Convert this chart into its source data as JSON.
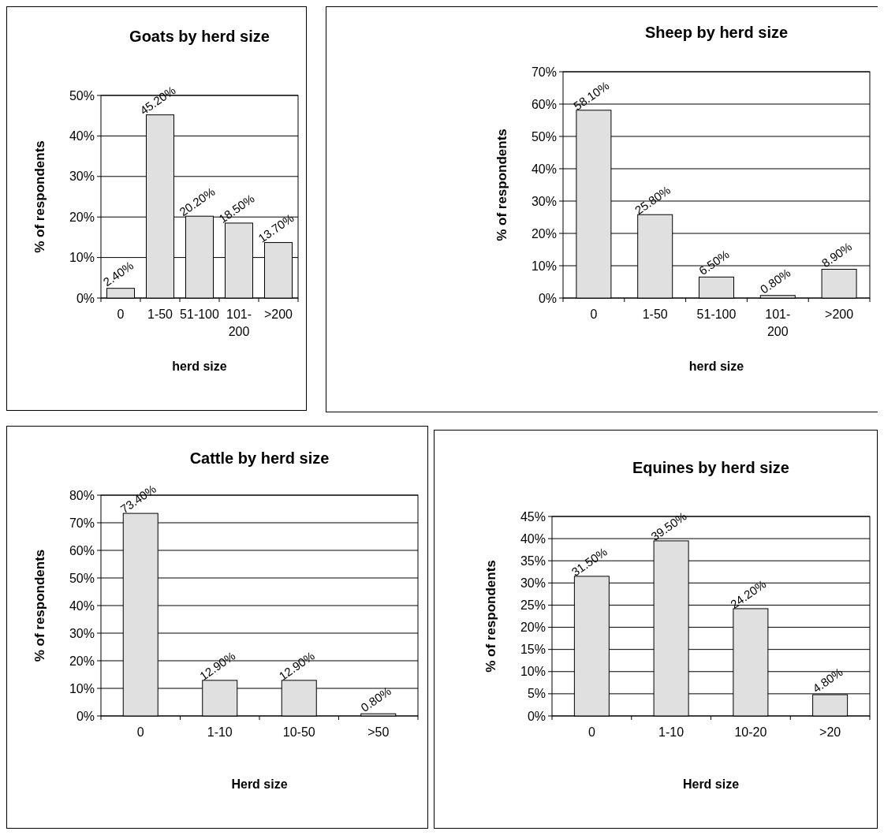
{
  "chart_data": [
    {
      "type": "bar",
      "title": "Goats by herd size",
      "xlabel": "herd size",
      "ylabel": "% of respondents",
      "categories": [
        "0",
        "1-50",
        "51-100",
        "101-200",
        ">200"
      ],
      "values": [
        2.4,
        45.2,
        20.2,
        18.5,
        13.7
      ],
      "value_labels": [
        "2.40%",
        "45.20%",
        "20.20%",
        "18.50%",
        "13.70%"
      ],
      "color": "#e0e0e0",
      "ylim": [
        0,
        50
      ],
      "yticks": [
        {
          "value": 0,
          "label": "0%"
        },
        {
          "value": 10,
          "label": "10%"
        },
        {
          "value": 20,
          "label": "20%"
        },
        {
          "value": 30,
          "label": "30%"
        },
        {
          "value": 40,
          "label": "40%"
        },
        {
          "value": 50,
          "label": "50%"
        }
      ],
      "grid": "y"
    },
    {
      "type": "bar",
      "title": "Sheep by herd size",
      "xlabel": "herd size",
      "ylabel": "% of respondents",
      "categories": [
        "0",
        "1-50",
        "51-100",
        "101-200",
        ">200"
      ],
      "values": [
        58.1,
        25.8,
        6.5,
        0.8,
        8.9
      ],
      "value_labels": [
        "58.10%",
        "25.80%",
        "6.50%",
        "0.80%",
        "8.90%"
      ],
      "color": "#e0e0e0",
      "ylim": [
        0,
        70
      ],
      "yticks": [
        {
          "value": 0,
          "label": "0%"
        },
        {
          "value": 10,
          "label": "10%"
        },
        {
          "value": 20,
          "label": "20%"
        },
        {
          "value": 30,
          "label": "30%"
        },
        {
          "value": 40,
          "label": "40%"
        },
        {
          "value": 50,
          "label": "50%"
        },
        {
          "value": 60,
          "label": "60%"
        },
        {
          "value": 70,
          "label": "70%"
        }
      ],
      "grid": "y"
    },
    {
      "type": "bar",
      "title": "Cattle by herd size",
      "xlabel": "Herd size",
      "ylabel": "% of respondents",
      "categories": [
        "0",
        "1-10",
        "10-50",
        ">50"
      ],
      "values": [
        73.4,
        12.9,
        12.9,
        0.8
      ],
      "value_labels": [
        "73.40%",
        "12.90%",
        "12.90%",
        "0.80%"
      ],
      "color": "#e0e0e0",
      "ylim": [
        0,
        80
      ],
      "yticks": [
        {
          "value": 0,
          "label": "0%"
        },
        {
          "value": 10,
          "label": "10%"
        },
        {
          "value": 20,
          "label": "20%"
        },
        {
          "value": 30,
          "label": "30%"
        },
        {
          "value": 40,
          "label": "40%"
        },
        {
          "value": 50,
          "label": "50%"
        },
        {
          "value": 60,
          "label": "60%"
        },
        {
          "value": 70,
          "label": "70%"
        },
        {
          "value": 80,
          "label": "80%"
        }
      ],
      "grid": "y"
    },
    {
      "type": "bar",
      "title": "Equines by herd size",
      "xlabel": "Herd size",
      "ylabel": "% of respondents",
      "categories": [
        "0",
        "1-10",
        "10-20",
        ">20"
      ],
      "values": [
        31.5,
        39.5,
        24.2,
        4.8
      ],
      "value_labels": [
        "31.50%",
        "39.50%",
        "24.20%",
        "4.80%"
      ],
      "color": "#e0e0e0",
      "ylim": [
        0,
        45
      ],
      "yticks": [
        {
          "value": 0,
          "label": "0%"
        },
        {
          "value": 5,
          "label": "5%"
        },
        {
          "value": 10,
          "label": "10%"
        },
        {
          "value": 15,
          "label": "15%"
        },
        {
          "value": 20,
          "label": "20%"
        },
        {
          "value": 25,
          "label": "25%"
        },
        {
          "value": 30,
          "label": "30%"
        },
        {
          "value": 35,
          "label": "35%"
        },
        {
          "value": 40,
          "label": "40%"
        },
        {
          "value": 45,
          "label": "45%"
        }
      ],
      "grid": "y"
    }
  ]
}
